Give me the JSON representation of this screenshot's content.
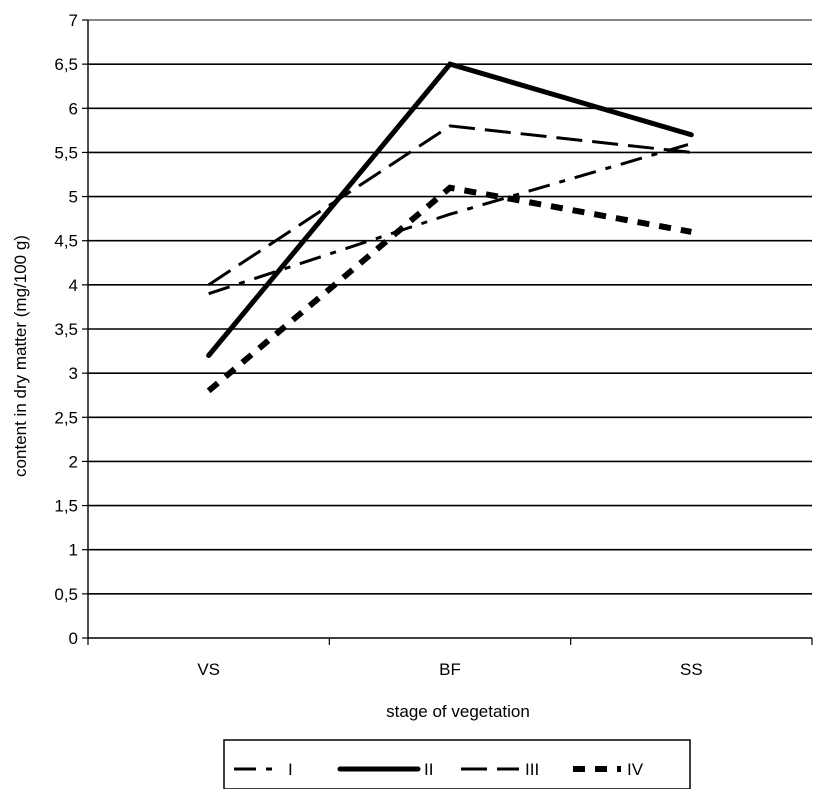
{
  "chart_data": {
    "type": "line",
    "title": "",
    "xlabel": "stage of vegetation",
    "ylabel": "content in dry matter (mg/100 g)",
    "categories": [
      "VS",
      "BF",
      "SS"
    ],
    "ylim": [
      0,
      7
    ],
    "yticks": [
      0,
      0.5,
      1,
      1.5,
      2,
      2.5,
      3,
      3.5,
      4,
      4.5,
      5,
      5.5,
      6,
      6.5,
      7
    ],
    "ytick_labels": [
      "0",
      "0,5",
      "1",
      "1,5",
      "2",
      "2,5",
      "3",
      "3,5",
      "4",
      "4,5",
      "5",
      "5,5",
      "6",
      "6,5",
      "7"
    ],
    "grid": true,
    "legend_position": "bottom",
    "series": [
      {
        "name": "I",
        "values": [
          3.9,
          4.8,
          5.6
        ],
        "style": "dash-dot",
        "color": "#000000"
      },
      {
        "name": "II",
        "values": [
          3.2,
          6.5,
          5.7
        ],
        "style": "solid-thick",
        "color": "#000000"
      },
      {
        "name": "III",
        "values": [
          4.0,
          5.8,
          5.5
        ],
        "style": "long-dash",
        "color": "#000000"
      },
      {
        "name": "IV",
        "values": [
          2.8,
          5.1,
          4.6
        ],
        "style": "short-dash-thick",
        "color": "#000000"
      }
    ]
  }
}
